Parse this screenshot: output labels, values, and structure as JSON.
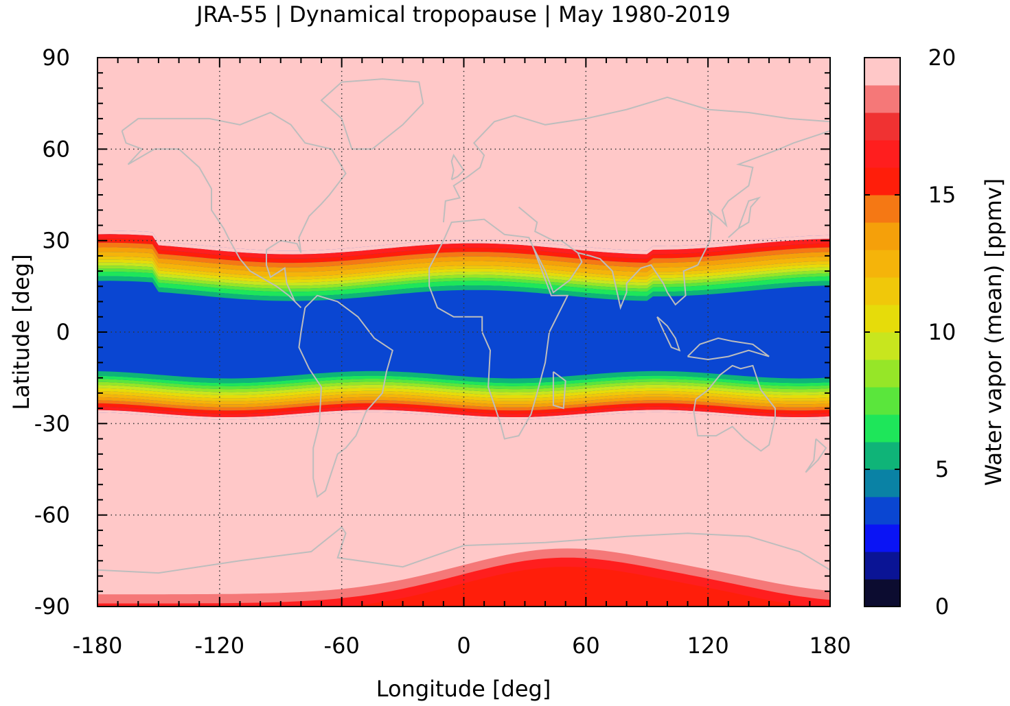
{
  "chart_data": {
    "type": "heatmap",
    "title": "JRA-55 | Dynamical tropopause | May 1980-2019",
    "xlabel": "Longitude [deg]",
    "ylabel": "Latitude [deg]",
    "xlim": [
      -180,
      180
    ],
    "ylim": [
      -90,
      90
    ],
    "x_ticks": [
      -180,
      -120,
      -60,
      0,
      60,
      120,
      180
    ],
    "y_ticks": [
      90,
      60,
      30,
      0,
      -30,
      -60,
      -90
    ],
    "x_tick_labels": [
      "-180",
      "-120",
      "-60",
      "0",
      "60",
      "120",
      "180"
    ],
    "y_tick_labels": [
      "90",
      "60",
      "30",
      "0",
      "-30",
      "-60",
      "-90"
    ],
    "grid": true,
    "colorbar": {
      "label": "Water vapor (mean) [ppmv]",
      "range": [
        0,
        20
      ],
      "tick_values": [
        20,
        15,
        10,
        5,
        0
      ],
      "tick_labels": [
        "20",
        "15",
        "10",
        "5",
        "0"
      ],
      "levels": [
        0,
        1,
        2,
        3,
        4,
        5,
        6,
        7,
        8,
        9,
        10,
        11,
        12,
        13,
        14,
        15,
        16,
        17,
        18,
        19,
        20
      ],
      "colors": [
        "#0c0c30",
        "#0a1495",
        "#0a14f5",
        "#0a46d2",
        "#0a82a5",
        "#0fb478",
        "#1ee65a",
        "#5ae63c",
        "#96e628",
        "#c8e61e",
        "#e6dc0a",
        "#f0c80a",
        "#f5b40a",
        "#f5a00a",
        "#f57814",
        "#ff1e0a",
        "#ff1e1e",
        "#f03232",
        "#f57878",
        "#ffc8c8"
      ]
    },
    "zonal_structure": {
      "description": "Mean water vapor at dynamical tropopause",
      "tropical_core_ppmv": 3.5,
      "tropical_core_lat_range": [
        -15,
        12
      ],
      "northern_transition_lat": 29,
      "southern_transition_lat": -28,
      "extratropics_ppmv": 20,
      "antarctic_max_ppmv": 16
    },
    "map_overlay": "coastlines"
  }
}
